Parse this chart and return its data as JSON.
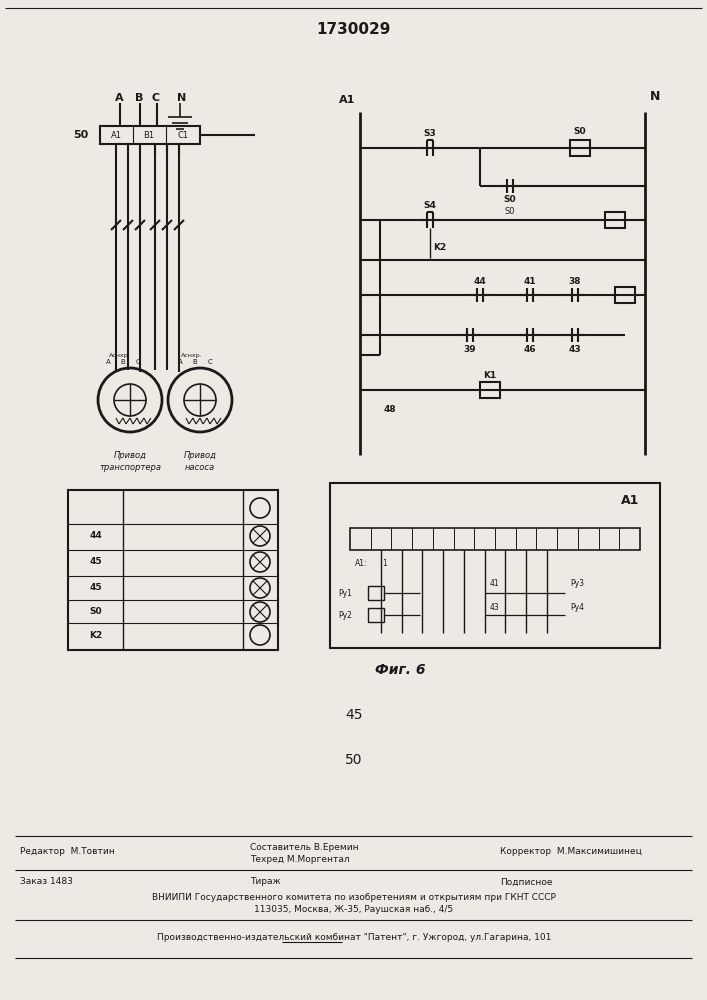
{
  "title": "1730029",
  "bg_color": "#ede9e3",
  "line_color": "#1a1a1a",
  "fig_label": "Фиг. 6",
  "page_45": "45",
  "page_50": "50"
}
